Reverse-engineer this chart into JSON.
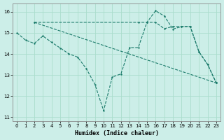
{
  "xlabel": "Humidex (Indice chaleur)",
  "bg_color": "#cceee8",
  "grid_color": "#aaddcc",
  "line_color": "#1a7a6a",
  "xlim": [
    -0.5,
    23.5
  ],
  "ylim": [
    10.8,
    16.4
  ],
  "yticks": [
    11,
    12,
    13,
    14,
    15,
    16
  ],
  "xticks": [
    0,
    1,
    2,
    3,
    4,
    5,
    6,
    7,
    8,
    9,
    10,
    11,
    12,
    13,
    14,
    15,
    16,
    17,
    18,
    19,
    20,
    21,
    22,
    23
  ],
  "line1_x": [
    0,
    1,
    2,
    3,
    4,
    5,
    6,
    7,
    8,
    9,
    10,
    11,
    12,
    13,
    14,
    15,
    16,
    17,
    18,
    19,
    20,
    21,
    22,
    23
  ],
  "line1_y": [
    15.0,
    14.65,
    14.5,
    14.85,
    14.55,
    14.28,
    14.0,
    13.85,
    13.3,
    12.55,
    11.3,
    12.9,
    13.05,
    14.3,
    14.3,
    15.5,
    16.05,
    15.8,
    15.18,
    15.3,
    15.3,
    14.1,
    13.5,
    12.62
  ],
  "line2_x": [
    2,
    14,
    15,
    16,
    17,
    18,
    19,
    20,
    21,
    22,
    23
  ],
  "line2_y": [
    15.5,
    15.5,
    15.5,
    15.5,
    15.2,
    15.3,
    15.3,
    15.3,
    14.1,
    13.5,
    12.62
  ],
  "line3_x": [
    2,
    23
  ],
  "line3_y": [
    15.5,
    12.62
  ]
}
